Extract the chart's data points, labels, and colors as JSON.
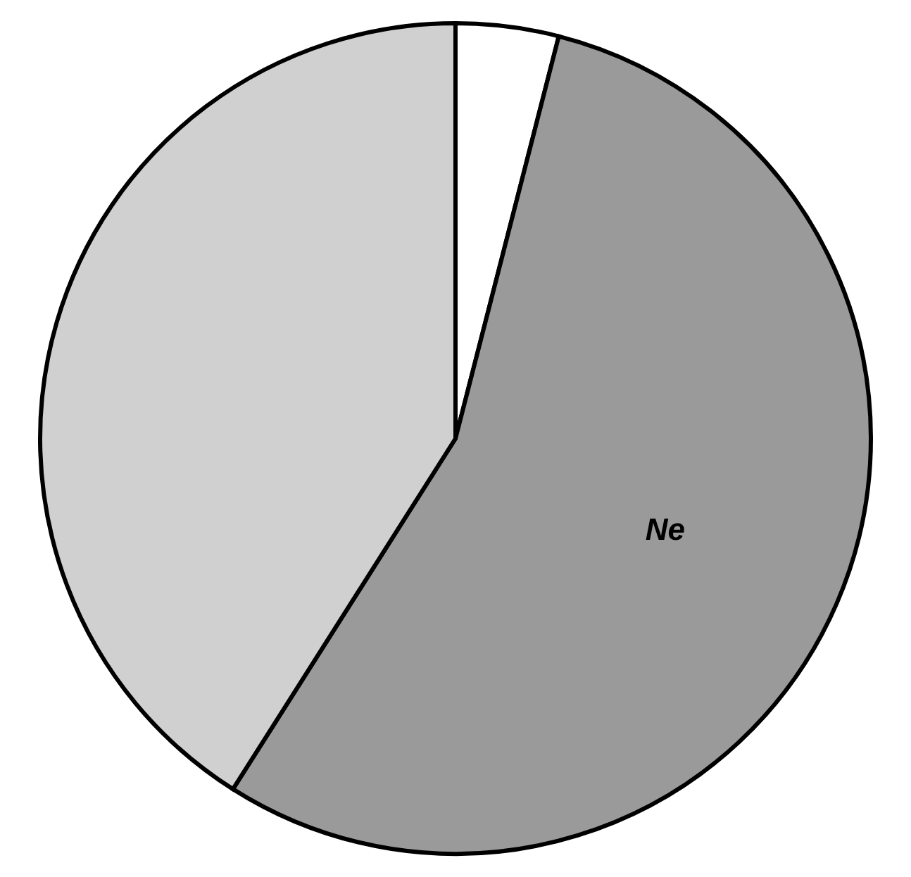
{
  "chart_data": {
    "type": "pie",
    "categories": [
      null,
      "Ne",
      null
    ],
    "values": [
      4,
      55,
      41
    ],
    "colors": [
      "#ffffff",
      "#9a9a9a",
      "#d0d0d0"
    ]
  }
}
